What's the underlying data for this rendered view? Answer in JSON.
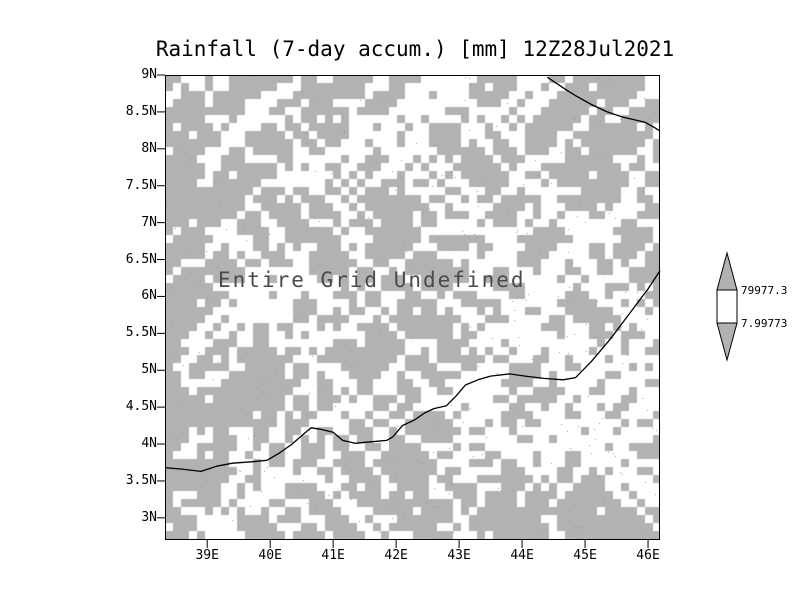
{
  "title": "Rainfall (7-day accum.) [mm] 12Z28Jul2021",
  "center_message": "Entire Grid Undefined",
  "colors": {
    "background": "#ffffff",
    "grid_fill": "#b2b2b2",
    "speckle": "#ffffff",
    "line": "#000000",
    "text": "#000000",
    "message_text": "#4a4a4a"
  },
  "chart_data": {
    "type": "heatmap",
    "title": "Rainfall (7-day accum.) [mm] 12Z28Jul2021",
    "status": "Entire Grid Undefined",
    "x_tick_labels": [
      "39E",
      "40E",
      "41E",
      "42E",
      "43E",
      "44E",
      "45E",
      "46E"
    ],
    "x_tick_values": [
      39,
      40,
      41,
      42,
      43,
      44,
      45,
      46
    ],
    "y_tick_labels": [
      "9N",
      "8.5N",
      "8N",
      "7.5N",
      "7N",
      "6.5N",
      "6N",
      "5.5N",
      "5N",
      "4.5N",
      "4N",
      "3.5N",
      "3N"
    ],
    "y_tick_values": [
      9,
      8.5,
      8,
      7.5,
      7,
      6.5,
      6,
      5.5,
      5,
      4.5,
      4,
      3.5,
      3
    ],
    "x_range": [
      38.33,
      46.19
    ],
    "y_range": [
      2.7,
      9.0
    ],
    "grid_on": false,
    "legend_position": "right",
    "colorbar": {
      "labels": [
        "79977.3",
        "7.99773"
      ],
      "segment_colors": [
        "#b2b2b2",
        "#ffffff",
        "#b2b2b2"
      ]
    },
    "coastlines": [
      {
        "points": [
          [
            38.33,
            3.68
          ],
          [
            38.6,
            3.66
          ],
          [
            38.9,
            3.63
          ],
          [
            39.15,
            3.7
          ],
          [
            39.4,
            3.74
          ],
          [
            39.7,
            3.76
          ],
          [
            39.95,
            3.78
          ],
          [
            40.15,
            3.88
          ],
          [
            40.35,
            4.0
          ],
          [
            40.55,
            4.15
          ],
          [
            40.65,
            4.22
          ],
          [
            40.8,
            4.2
          ],
          [
            41.0,
            4.16
          ],
          [
            41.15,
            4.05
          ],
          [
            41.35,
            4.01
          ],
          [
            41.6,
            4.03
          ],
          [
            41.85,
            4.05
          ],
          [
            41.95,
            4.1
          ],
          [
            42.1,
            4.25
          ],
          [
            42.3,
            4.33
          ],
          [
            42.45,
            4.42
          ],
          [
            42.6,
            4.48
          ],
          [
            42.8,
            4.52
          ],
          [
            42.95,
            4.65
          ],
          [
            43.1,
            4.8
          ],
          [
            43.3,
            4.87
          ],
          [
            43.5,
            4.92
          ],
          [
            43.8,
            4.95
          ],
          [
            44.05,
            4.92
          ],
          [
            44.35,
            4.89
          ],
          [
            44.65,
            4.87
          ],
          [
            44.85,
            4.9
          ],
          [
            45.1,
            5.12
          ],
          [
            45.4,
            5.42
          ],
          [
            45.7,
            5.76
          ],
          [
            46.0,
            6.1
          ],
          [
            46.19,
            6.35
          ]
        ]
      },
      {
        "points": [
          [
            44.4,
            8.97
          ],
          [
            44.7,
            8.8
          ],
          [
            44.85,
            8.72
          ],
          [
            45.1,
            8.6
          ],
          [
            45.35,
            8.5
          ],
          [
            45.6,
            8.43
          ],
          [
            45.8,
            8.39
          ],
          [
            45.95,
            8.36
          ],
          [
            46.1,
            8.29
          ],
          [
            46.19,
            8.24
          ]
        ]
      }
    ]
  }
}
